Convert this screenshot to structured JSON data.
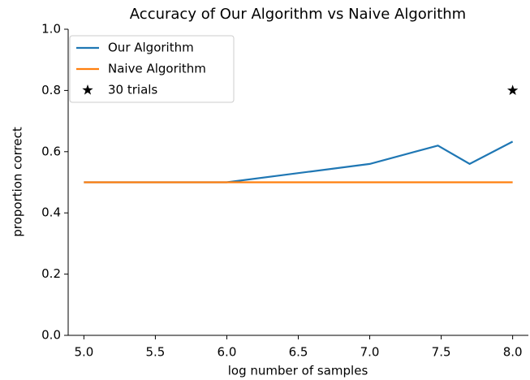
{
  "chart_data": {
    "type": "line",
    "title": "Accuracy of Our Algorithm vs Naive Algorithm",
    "xlabel": "log number of samples",
    "ylabel": "proportion correct",
    "series": [
      {
        "name": "Our Algorithm",
        "color": "#1f77b4",
        "marker": "none",
        "x": [
          5,
          6,
          7,
          7.477,
          7.699,
          8
        ],
        "values": [
          0.5,
          0.5,
          0.56,
          0.62,
          0.56,
          0.633
        ]
      },
      {
        "name": "Naive Algorithm",
        "color": "#ff7f0e",
        "marker": "none",
        "x": [
          5,
          6,
          7,
          7.477,
          7.699,
          8
        ],
        "values": [
          0.5,
          0.5,
          0.5,
          0.5,
          0.5,
          0.5
        ]
      },
      {
        "name": "30 trials",
        "color": "#000000",
        "marker": "star",
        "x": [
          8
        ],
        "values": [
          0.8
        ]
      }
    ],
    "xlim": [
      4.89,
      8.11
    ],
    "xticks": [
      {
        "value": 5,
        "label": "5.0"
      },
      5.5,
      {
        "value": 6,
        "label": "6.0"
      },
      6.5,
      {
        "value": 7,
        "label": "7.0"
      },
      7.5,
      {
        "value": 8,
        "label": "8.0"
      }
    ],
    "ylim": [
      0,
      1
    ],
    "yticks": [
      {
        "value": 0,
        "label": "0.0"
      },
      0.2,
      0.4,
      0.6,
      0.8,
      {
        "value": 1,
        "label": "1.0"
      }
    ],
    "legend": "upper left"
  }
}
